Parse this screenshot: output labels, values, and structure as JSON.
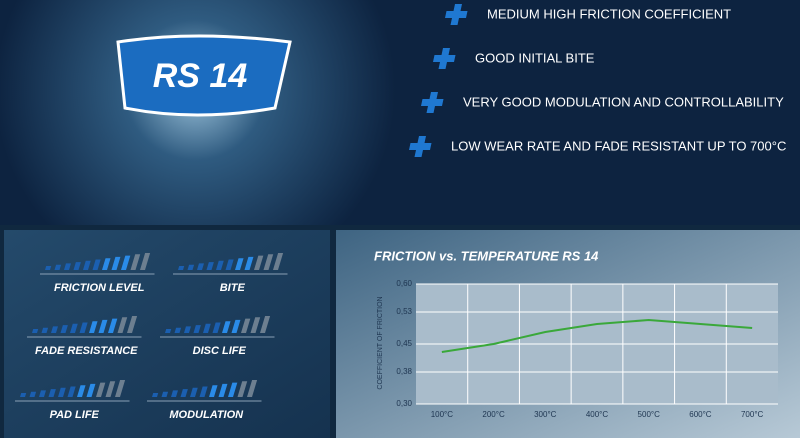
{
  "product": "RS 14",
  "features": [
    "MEDIUM HIGH FRICTION COEFFICIENT",
    "GOOD INITIAL BITE",
    "VERY GOOD MODULATION AND CONTROLLABILITY",
    "LOW WEAR RATE AND FADE RESISTANT UP TO 700°C"
  ],
  "ratings": {
    "scale_max": 11,
    "items": [
      {
        "label": "FRICTION LEVEL",
        "value": 9
      },
      {
        "label": "BITE",
        "value": 8
      },
      {
        "label": "FADE RESISTANCE",
        "value": 9
      },
      {
        "label": "DISC LIFE",
        "value": 8
      },
      {
        "label": "PAD LIFE",
        "value": 8
      },
      {
        "label": "MODULATION",
        "value": 9
      }
    ]
  },
  "chart_data": {
    "type": "line",
    "title": "FRICTION vs. TEMPERATURE RS 14",
    "y_label": "COEFFICIENT OF FRICTION",
    "categories": [
      "100°C",
      "200°C",
      "300°C",
      "400°C",
      "500°C",
      "600°C",
      "700°C"
    ],
    "values": [
      0.43,
      0.45,
      0.48,
      0.5,
      0.51,
      0.5,
      0.49
    ],
    "color": "#3aa83a",
    "ylim": [
      0.3,
      0.6
    ],
    "yticks": [
      {
        "value": 0.3,
        "label": "0,30"
      },
      {
        "value": 0.38,
        "label": "0,38"
      },
      {
        "value": 0.45,
        "label": "0,45"
      },
      {
        "value": 0.53,
        "label": "0,53"
      },
      {
        "value": 0.6,
        "label": "0,60"
      }
    ],
    "grid": true
  }
}
